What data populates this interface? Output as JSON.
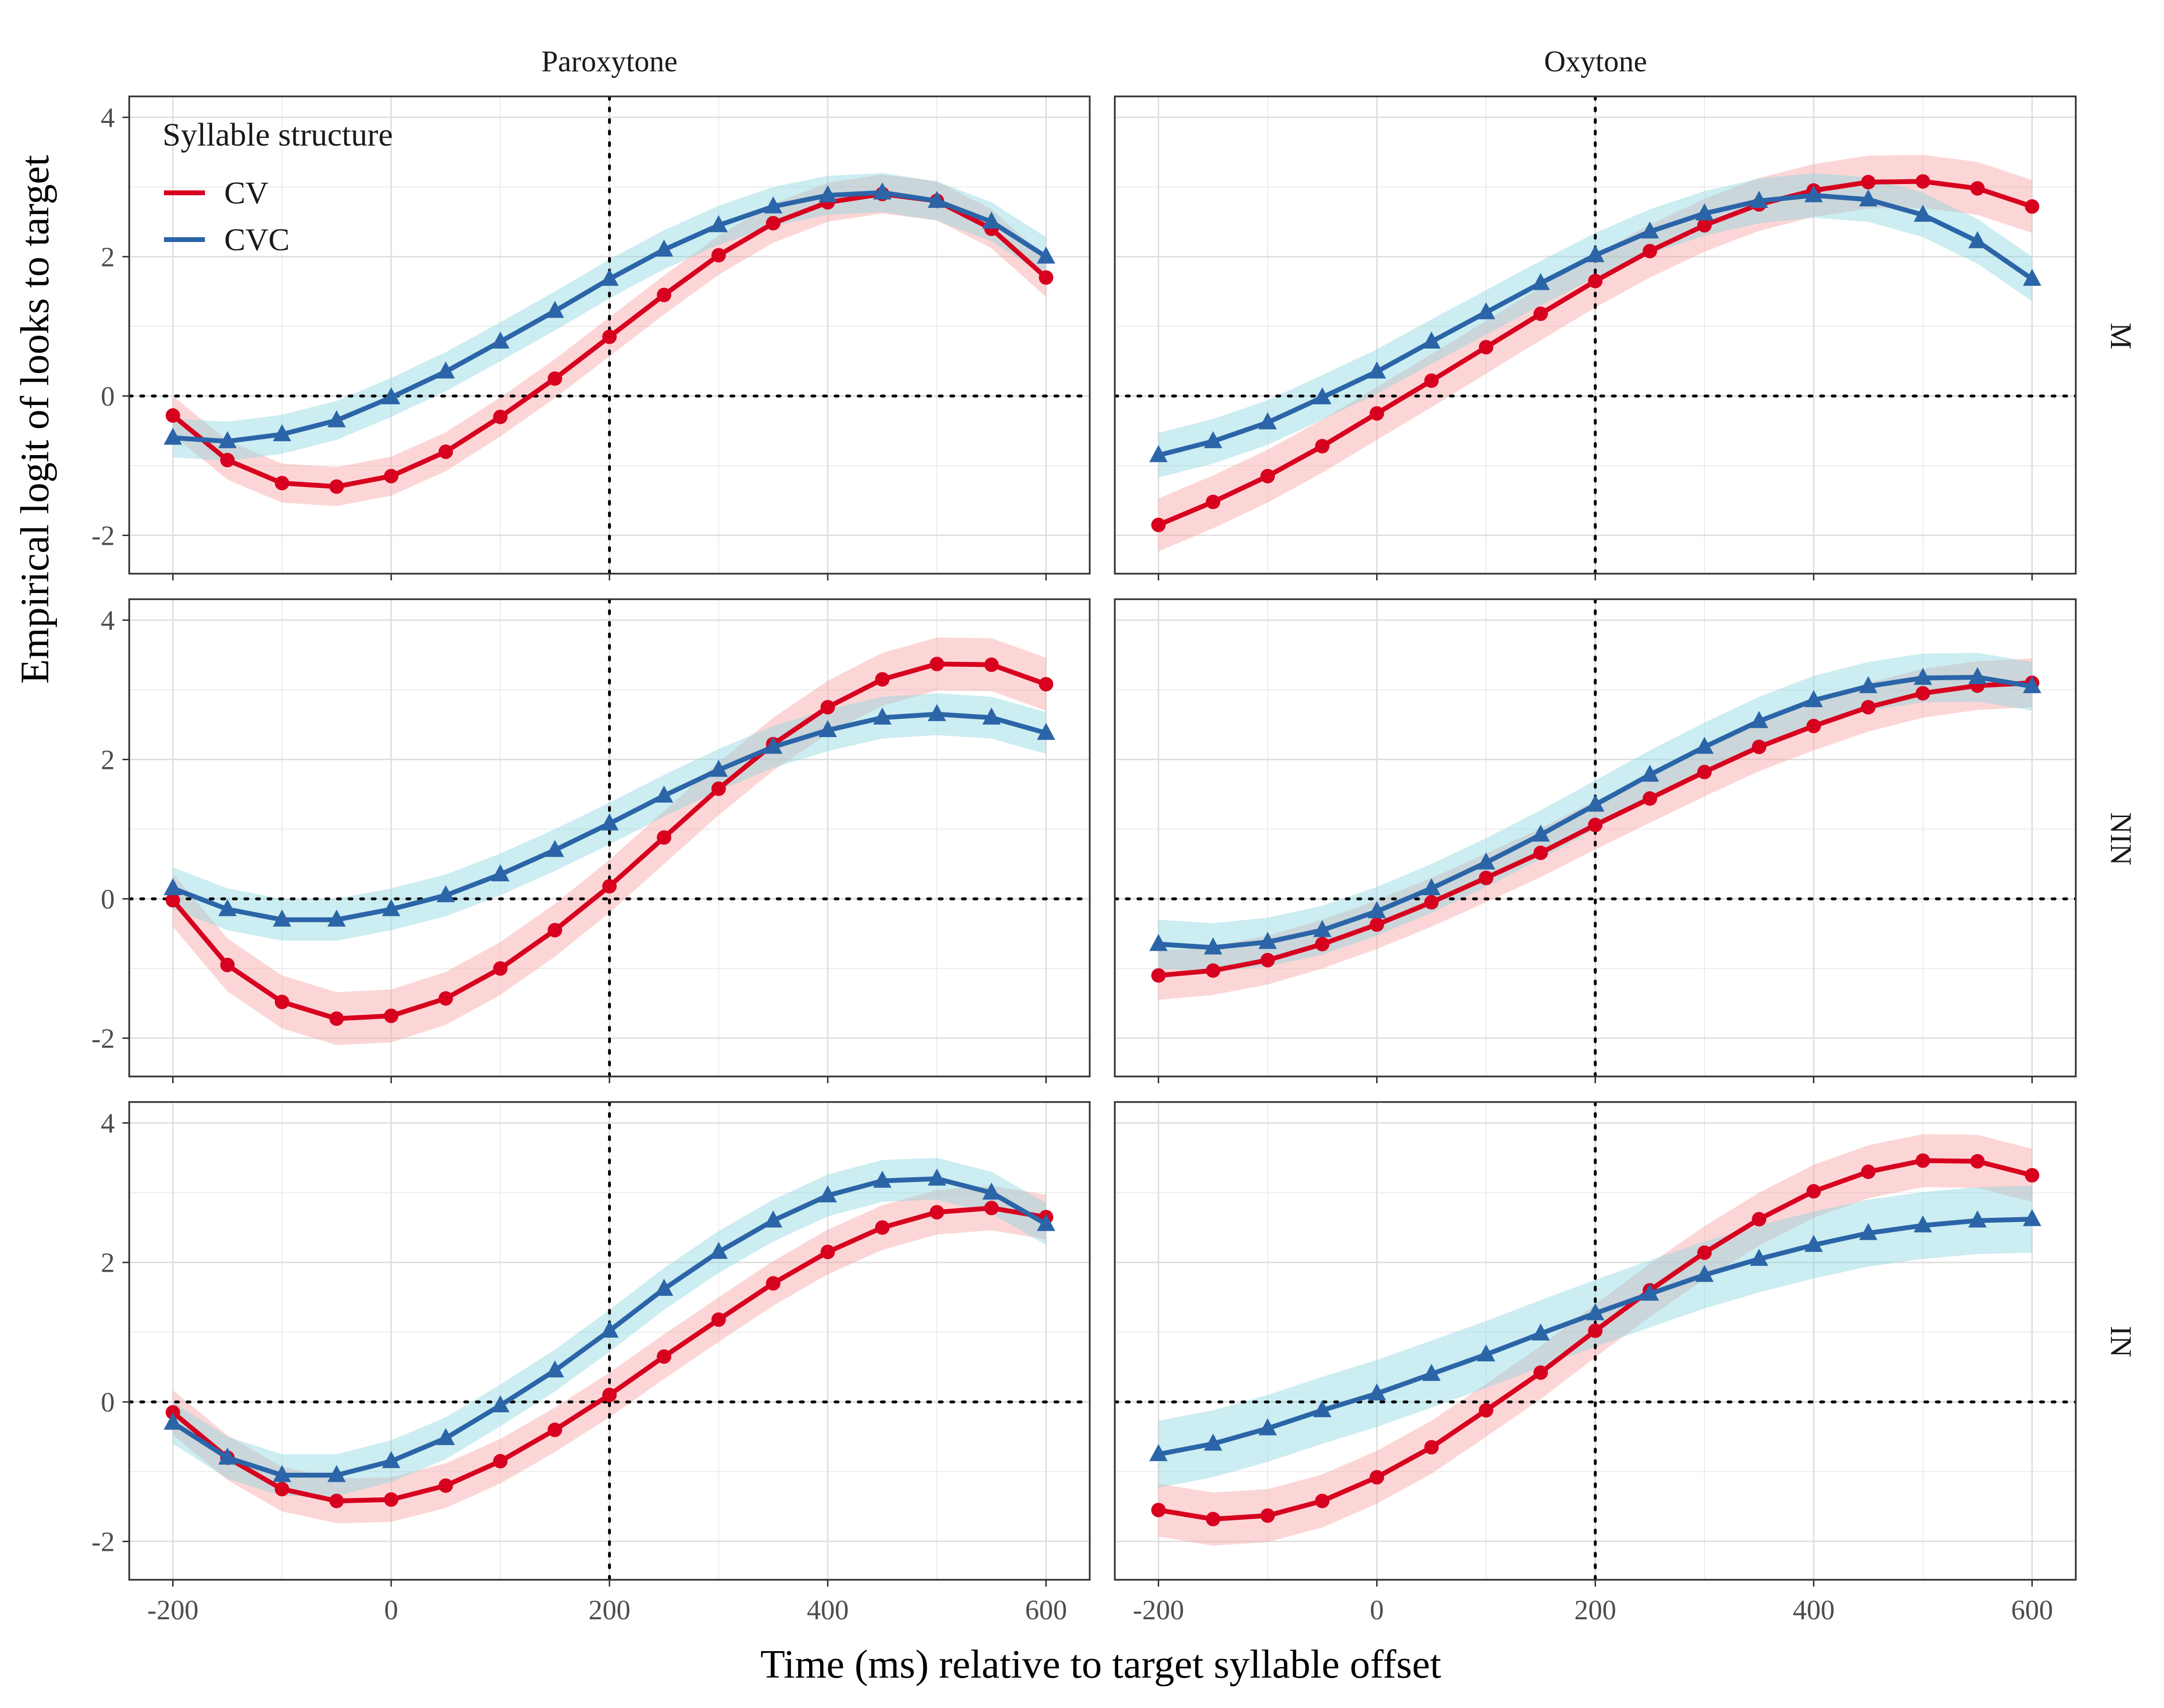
{
  "chart_data": {
    "type": "line",
    "xlabel": "Time (ms) relative to target syllable offset",
    "ylabel": "Empirical logit of looks to target",
    "xlim": [
      -240,
      640
    ],
    "ylim": [
      -2.55,
      4.3
    ],
    "x_ticks": [
      -200,
      0,
      200,
      400,
      600
    ],
    "x_tick_labels": [
      "-200",
      "0",
      "200",
      "400",
      "600"
    ],
    "y_ticks": [
      -2,
      0,
      2,
      4
    ],
    "y_tick_labels": [
      "-2",
      "0",
      "2",
      "4"
    ],
    "grid": true,
    "reference_lines": {
      "x": 200,
      "y": 0,
      "style": "dotted"
    },
    "legend": {
      "title": "Syllable structure",
      "position": "top-left",
      "entries": [
        {
          "label": "CV",
          "color": "#d7001f"
        },
        {
          "label": "CVC",
          "color": "#2b65a8"
        }
      ]
    },
    "colors": {
      "CV_line": "#d7001f",
      "CV_ribbon": "#f8a3a3",
      "CVC_line": "#2b65a8",
      "CVC_ribbon": "#8fd8df"
    },
    "column_labels": [
      "Paroxytone",
      "Oxytone"
    ],
    "row_labels": [
      "M",
      "NIN",
      "IN"
    ],
    "x": [
      -200,
      -150,
      -100,
      -50,
      0,
      50,
      100,
      150,
      200,
      250,
      300,
      350,
      400,
      450,
      500,
      550,
      600
    ],
    "panels": [
      {
        "column": "Paroxytone",
        "row": "M",
        "series": [
          {
            "name": "CV",
            "values": [
              -0.28,
              -0.92,
              -1.25,
              -1.3,
              -1.15,
              -0.8,
              -0.3,
              0.25,
              0.85,
              1.45,
              2.02,
              2.48,
              2.78,
              2.9,
              2.8,
              2.4,
              1.7
            ],
            "ci": 0.28
          },
          {
            "name": "CVC",
            "values": [
              -0.6,
              -0.65,
              -0.55,
              -0.35,
              -0.02,
              0.35,
              0.78,
              1.22,
              1.68,
              2.1,
              2.45,
              2.72,
              2.88,
              2.92,
              2.8,
              2.5,
              2.0
            ],
            "ci": 0.28
          }
        ]
      },
      {
        "column": "Oxytone",
        "row": "M",
        "series": [
          {
            "name": "CV",
            "values": [
              -1.85,
              -1.52,
              -1.15,
              -0.72,
              -0.25,
              0.22,
              0.7,
              1.18,
              1.65,
              2.08,
              2.45,
              2.75,
              2.95,
              3.07,
              3.08,
              2.98,
              2.72
            ],
            "ci": 0.38
          },
          {
            "name": "CVC",
            "values": [
              -0.85,
              -0.65,
              -0.38,
              -0.02,
              0.35,
              0.78,
              1.2,
              1.62,
              2.02,
              2.36,
              2.62,
              2.8,
              2.88,
              2.82,
              2.6,
              2.22,
              1.68
            ],
            "ci": 0.32
          }
        ]
      },
      {
        "column": "Paroxytone",
        "row": "NIN",
        "series": [
          {
            "name": "CV",
            "values": [
              -0.02,
              -0.95,
              -1.48,
              -1.72,
              -1.68,
              -1.43,
              -1.0,
              -0.45,
              0.18,
              0.88,
              1.58,
              2.22,
              2.75,
              3.15,
              3.37,
              3.36,
              3.08
            ],
            "ci": 0.38
          },
          {
            "name": "CVC",
            "values": [
              0.15,
              -0.15,
              -0.3,
              -0.3,
              -0.15,
              0.05,
              0.35,
              0.7,
              1.08,
              1.48,
              1.85,
              2.18,
              2.42,
              2.6,
              2.65,
              2.6,
              2.38
            ],
            "ci": 0.3
          }
        ]
      },
      {
        "column": "Oxytone",
        "row": "NIN",
        "series": [
          {
            "name": "CV",
            "values": [
              -1.1,
              -1.03,
              -0.88,
              -0.65,
              -0.37,
              -0.05,
              0.3,
              0.66,
              1.06,
              1.44,
              1.82,
              2.18,
              2.48,
              2.75,
              2.95,
              3.06,
              3.1
            ],
            "ci": 0.35
          },
          {
            "name": "CVC",
            "values": [
              -0.65,
              -0.7,
              -0.62,
              -0.45,
              -0.18,
              0.15,
              0.52,
              0.92,
              1.35,
              1.78,
              2.18,
              2.55,
              2.85,
              3.05,
              3.17,
              3.18,
              3.05
            ],
            "ci": 0.35
          }
        ]
      },
      {
        "column": "Paroxytone",
        "row": "IN",
        "series": [
          {
            "name": "CV",
            "values": [
              -0.15,
              -0.8,
              -1.25,
              -1.42,
              -1.4,
              -1.2,
              -0.85,
              -0.4,
              0.1,
              0.65,
              1.18,
              1.7,
              2.15,
              2.5,
              2.72,
              2.78,
              2.65
            ],
            "ci": 0.32
          },
          {
            "name": "CVC",
            "values": [
              -0.3,
              -0.8,
              -1.05,
              -1.05,
              -0.85,
              -0.52,
              -0.05,
              0.45,
              1.02,
              1.62,
              2.15,
              2.6,
              2.96,
              3.17,
              3.2,
              3.0,
              2.55
            ],
            "ci": 0.3
          }
        ]
      },
      {
        "column": "Oxytone",
        "row": "IN",
        "series": [
          {
            "name": "CV",
            "values": [
              -1.55,
              -1.68,
              -1.63,
              -1.42,
              -1.08,
              -0.65,
              -0.12,
              0.42,
              1.02,
              1.6,
              2.14,
              2.62,
              3.02,
              3.3,
              3.46,
              3.45,
              3.25
            ],
            "ci": 0.38
          },
          {
            "name": "CVC",
            "values": [
              -0.75,
              -0.6,
              -0.38,
              -0.12,
              0.12,
              0.4,
              0.68,
              0.98,
              1.27,
              1.55,
              1.82,
              2.05,
              2.25,
              2.42,
              2.53,
              2.6,
              2.62
            ],
            "ci": 0.48
          }
        ]
      }
    ]
  }
}
